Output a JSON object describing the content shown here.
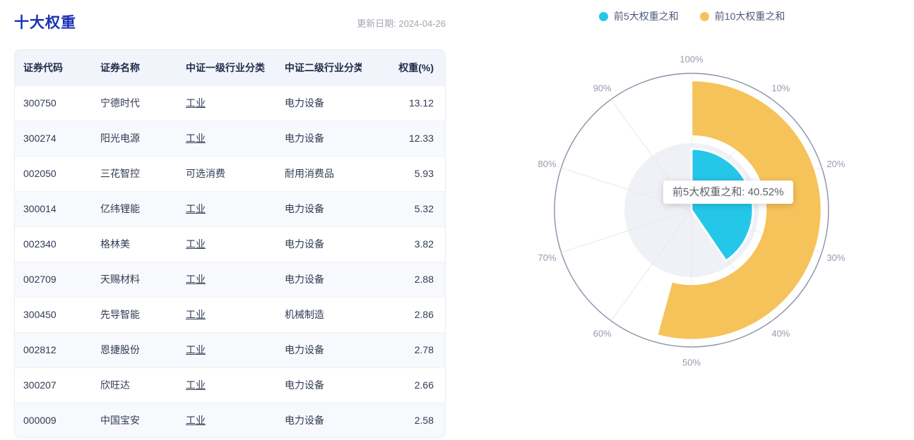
{
  "page": {
    "title": "十大权重",
    "update_date": "更新日期: 2024-04-26"
  },
  "table": {
    "headers": [
      "证券代码",
      "证券名称",
      "中证一级行业分类",
      "中证二级行业分类",
      "权重(%)"
    ],
    "rows": [
      {
        "code": "300750",
        "name": "宁德时代",
        "industry_l1": "工业",
        "l1_underline": true,
        "industry_l2": "电力设备",
        "weight": "13.12"
      },
      {
        "code": "300274",
        "name": "阳光电源",
        "industry_l1": "工业",
        "l1_underline": true,
        "industry_l2": "电力设备",
        "weight": "12.33"
      },
      {
        "code": "002050",
        "name": "三花智控",
        "industry_l1": "可选消费",
        "l1_underline": false,
        "industry_l2": "耐用消费品",
        "weight": "5.93"
      },
      {
        "code": "300014",
        "name": "亿纬锂能",
        "industry_l1": "工业",
        "l1_underline": true,
        "industry_l2": "电力设备",
        "weight": "5.32"
      },
      {
        "code": "002340",
        "name": "格林美",
        "industry_l1": "工业",
        "l1_underline": true,
        "industry_l2": "电力设备",
        "weight": "3.82"
      },
      {
        "code": "002709",
        "name": "天赐材料",
        "industry_l1": "工业",
        "l1_underline": true,
        "industry_l2": "电力设备",
        "weight": "2.88"
      },
      {
        "code": "300450",
        "name": "先导智能",
        "industry_l1": "工业",
        "l1_underline": true,
        "industry_l2": "机械制造",
        "weight": "2.86"
      },
      {
        "code": "002812",
        "name": "恩捷股份",
        "industry_l1": "工业",
        "l1_underline": true,
        "industry_l2": "电力设备",
        "weight": "2.78"
      },
      {
        "code": "300207",
        "name": "欣旺达",
        "industry_l1": "工业",
        "l1_underline": true,
        "industry_l2": "电力设备",
        "weight": "2.66"
      },
      {
        "code": "000009",
        "name": "中国宝安",
        "industry_l1": "工业",
        "l1_underline": true,
        "industry_l2": "电力设备",
        "weight": "2.58"
      }
    ]
  },
  "legend": [
    {
      "label": "前5大权重之和",
      "color": "#25C7E8"
    },
    {
      "label": "前10大权重之和",
      "color": "#F6C35B"
    }
  ],
  "chart_data": {
    "type": "polar-bar",
    "angle_axis": {
      "min": 0,
      "max": 100,
      "unit": "%",
      "tick_labels": [
        "100%",
        "10%",
        "20%",
        "30%",
        "40%",
        "50%",
        "60%",
        "70%",
        "80%",
        "90%"
      ],
      "clockwise": true,
      "start_angle_deg": 0
    },
    "series": [
      {
        "name": "前5大权重之和",
        "value": 40.52,
        "color": "#25C7E8",
        "inner_radius": 0,
        "outer_radius": 87
      },
      {
        "name": "前10大权重之和",
        "value": 54.28,
        "color": "#F6C35B",
        "inner_radius": 105,
        "outer_radius": 184
      }
    ],
    "tooltip": {
      "text": "前5大权重之和: 40.52%"
    },
    "style": {
      "outer_circle_radius": 194,
      "outer_circle_color": "#8A91A8",
      "spoke_color": "#E5E8EF",
      "inner_disc_radius": 95,
      "inner_disc_color": "#EFF1F7",
      "label_radius": 215,
      "label_color": "#949BAC",
      "sector_border_color": "#FFFFFF"
    }
  }
}
